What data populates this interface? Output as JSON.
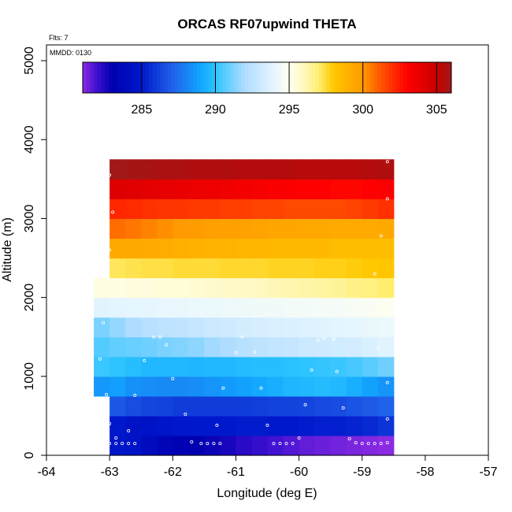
{
  "chart_data": {
    "type": "heatmap",
    "title": "ORCAS RF07upwind THETA",
    "annotations": {
      "flights": "Flts: 7",
      "date": "MMDD: 0130"
    },
    "xlabel": "Longitude (deg E)",
    "ylabel": "Altitude (m)",
    "xlim": [
      -64,
      -57
    ],
    "ylim": [
      0,
      5200
    ],
    "xticks": [
      -64,
      -63,
      -62,
      -61,
      -60,
      -59,
      -58,
      -57
    ],
    "yticks": [
      0,
      1000,
      2000,
      3000,
      4000,
      5000
    ],
    "colorbar": {
      "range": [
        281,
        306
      ],
      "ticks": [
        285,
        290,
        295,
        300,
        305
      ],
      "stops": [
        {
          "v": 281,
          "c": "#8a2be2"
        },
        {
          "v": 282,
          "c": "#3a0fd0"
        },
        {
          "v": 283,
          "c": "#0000b0"
        },
        {
          "v": 285,
          "c": "#0018cc"
        },
        {
          "v": 287,
          "c": "#1f5fe8"
        },
        {
          "v": 289,
          "c": "#11a6ff"
        },
        {
          "v": 290,
          "c": "#2dc4ff"
        },
        {
          "v": 292,
          "c": "#b0dcff"
        },
        {
          "v": 294,
          "c": "#e6f6ff"
        },
        {
          "v": 295,
          "c": "#fffff0"
        },
        {
          "v": 296,
          "c": "#fff8c0"
        },
        {
          "v": 297,
          "c": "#ffee70"
        },
        {
          "v": 298,
          "c": "#ffc800"
        },
        {
          "v": 300,
          "c": "#ff9a00"
        },
        {
          "v": 301,
          "c": "#ff6000"
        },
        {
          "v": 303,
          "c": "#ff0000"
        },
        {
          "v": 305,
          "c": "#c80000"
        },
        {
          "v": 306,
          "c": "#a01818"
        }
      ]
    },
    "cell_lon_width": 0.25,
    "rows": [
      {
        "alt": [
          0,
          250
        ],
        "lon": [
          -63,
          -58.5
        ],
        "theta": [
          284.8,
          284.6,
          284.0,
          283.5,
          283.2,
          283.0,
          282.8,
          282.6,
          282.3,
          282.1,
          281.9,
          281.7,
          281.5,
          281.4,
          281.3,
          281.2,
          281.1,
          281.0
        ]
      },
      {
        "alt": [
          250,
          500
        ],
        "lon": [
          -63,
          -58.5
        ],
        "theta": [
          285.0,
          284.6,
          284.5,
          284.7,
          284.9,
          285.0,
          285.0,
          285.0,
          285.1,
          285.1,
          285.0,
          285.0,
          285.1,
          285.2,
          285.2,
          285.3,
          285.5,
          285.8
        ]
      },
      {
        "alt": [
          500,
          750
        ],
        "lon": [
          -63,
          -58.5
        ],
        "theta": [
          286.8,
          286.5,
          286.3,
          286.2,
          286.0,
          286.0,
          286.0,
          286.0,
          286.0,
          286.1,
          286.2,
          286.2,
          286.3,
          286.4,
          286.5,
          286.7,
          286.9,
          287.1
        ]
      },
      {
        "alt": [
          750,
          1000
        ],
        "lon": [
          -63.25,
          -58.5
        ],
        "theta": [
          288.6,
          288.8,
          288.4,
          288.3,
          288.2,
          288.2,
          288.3,
          288.5,
          288.7,
          288.9,
          289.1,
          289.3,
          289.5,
          289.6,
          289.7,
          289.6,
          289.3,
          288.9,
          288.5
        ]
      },
      {
        "alt": [
          1000,
          1250
        ],
        "lon": [
          -63.25,
          -58.5
        ],
        "theta": [
          290.2,
          290.0,
          289.8,
          289.6,
          289.6,
          289.6,
          289.5,
          289.6,
          289.6,
          289.7,
          289.8,
          289.8,
          289.9,
          290.0,
          290.1,
          290.2,
          290.4,
          290.7,
          291.0
        ]
      },
      {
        "alt": [
          1250,
          1500
        ],
        "lon": [
          -63.25,
          -58.5
        ],
        "theta": [
          290.6,
          290.8,
          290.9,
          291.0,
          291.2,
          291.3,
          291.5,
          291.8,
          292.0,
          292.3,
          292.5,
          292.7,
          292.8,
          293.0,
          293.1,
          293.2,
          293.3,
          293.5,
          293.8
        ]
      },
      {
        "alt": [
          1500,
          1750
        ],
        "lon": [
          -63.25,
          -58.5
        ],
        "theta": [
          291.2,
          291.6,
          292.0,
          292.3,
          292.5,
          292.6,
          292.8,
          293.0,
          293.1,
          293.3,
          293.4,
          293.5,
          293.6,
          293.7,
          293.8,
          293.9,
          294.0,
          294.1,
          294.2
        ]
      },
      {
        "alt": [
          1750,
          2000
        ],
        "lon": [
          -63.25,
          -58.5
        ],
        "theta": [
          293.8,
          293.9,
          294.0,
          294.0,
          294.1,
          294.1,
          294.2,
          294.2,
          294.3,
          294.3,
          294.4,
          294.4,
          294.5,
          294.5,
          294.6,
          294.6,
          294.7,
          294.8,
          294.9
        ]
      },
      {
        "alt": [
          2000,
          2250
        ],
        "lon": [
          -63.25,
          -58.5
        ],
        "theta": [
          295.3,
          295.3,
          295.4,
          295.4,
          295.5,
          295.5,
          295.6,
          295.7,
          295.8,
          295.9,
          296.0,
          296.1,
          296.2,
          296.3,
          296.4,
          296.5,
          296.7,
          296.8,
          297.0
        ]
      },
      {
        "alt": [
          2250,
          2500
        ],
        "lon": [
          -63,
          -58.5
        ],
        "theta": [
          297.2,
          297.3,
          297.4,
          297.4,
          297.5,
          297.5,
          297.5,
          297.6,
          297.6,
          297.6,
          297.7,
          297.7,
          297.7,
          297.8,
          297.8,
          297.9,
          298.0,
          298.1
        ]
      },
      {
        "alt": [
          2500,
          2750
        ],
        "lon": [
          -63,
          -58.5
        ],
        "theta": [
          299.4,
          299.4,
          299.3,
          299.2,
          299.1,
          299.0,
          298.9,
          298.9,
          298.8,
          298.8,
          298.7,
          298.7,
          298.6,
          298.6,
          298.5,
          298.5,
          298.5,
          298.5
        ]
      },
      {
        "alt": [
          2750,
          3000
        ],
        "lon": [
          -63,
          -58.5
        ],
        "theta": [
          300.8,
          300.6,
          300.4,
          300.2,
          300.0,
          299.9,
          299.8,
          299.7,
          299.7,
          299.6,
          299.5,
          299.5,
          299.4,
          299.4,
          299.3,
          299.3,
          299.3,
          299.4
        ]
      },
      {
        "alt": [
          3000,
          3250
        ],
        "lon": [
          -63,
          -58.5
        ],
        "theta": [
          302.2,
          302.1,
          302.0,
          301.9,
          301.9,
          301.8,
          301.8,
          301.7,
          301.7,
          301.6,
          301.6,
          301.5,
          301.5,
          301.5,
          301.5,
          301.6,
          301.8,
          302.0
        ]
      },
      {
        "alt": [
          3250,
          3500
        ],
        "lon": [
          -63,
          -58.5
        ],
        "theta": [
          304.2,
          304.1,
          304.0,
          303.9,
          303.8,
          303.7,
          303.6,
          303.5,
          303.4,
          303.3,
          303.2,
          303.1,
          303.0,
          303.0,
          302.9,
          302.9,
          303.0,
          303.2
        ]
      },
      {
        "alt": [
          3500,
          3750
        ],
        "lon": [
          -63,
          -58.5
        ],
        "theta": [
          306.0,
          305.9,
          305.8,
          305.7,
          305.7,
          305.6,
          305.6,
          305.6,
          305.5,
          305.5,
          305.5,
          305.5,
          305.4,
          305.4,
          305.4,
          305.4,
          305.5,
          305.6
        ]
      }
    ],
    "obs_points": [
      [
        -63,
        3550
      ],
      [
        -58.6,
        3720
      ],
      [
        -58.6,
        3250
      ],
      [
        -62.95,
        3080
      ],
      [
        -58.7,
        2780
      ],
      [
        -63,
        2600
      ],
      [
        -58.8,
        2300
      ],
      [
        -63.1,
        2120
      ],
      [
        -63.1,
        1680
      ],
      [
        -62.3,
        1500
      ],
      [
        -62.2,
        1500
      ],
      [
        -62.1,
        1400
      ],
      [
        -61.0,
        1300
      ],
      [
        -60.9,
        1500
      ],
      [
        -60.7,
        1310
      ],
      [
        -59.7,
        1460
      ],
      [
        -59.6,
        1480
      ],
      [
        -59.45,
        1470
      ],
      [
        -58.75,
        1360
      ],
      [
        -63.15,
        1220
      ],
      [
        -62.45,
        1200
      ],
      [
        -62.0,
        970
      ],
      [
        -59.8,
        1080
      ],
      [
        -59.4,
        1060
      ],
      [
        -58.6,
        920
      ],
      [
        -61.2,
        850
      ],
      [
        -60.6,
        850
      ],
      [
        -63.05,
        770
      ],
      [
        -62.6,
        760
      ],
      [
        -59.3,
        600
      ],
      [
        -59.9,
        640
      ],
      [
        -61.8,
        520
      ],
      [
        -58.6,
        460
      ],
      [
        -61.3,
        380
      ],
      [
        -60.5,
        380
      ],
      [
        -62.7,
        310
      ],
      [
        -63.0,
        400
      ],
      [
        -62.9,
        220
      ],
      [
        -59.2,
        210
      ],
      [
        -60.0,
        220
      ],
      [
        -63.0,
        150
      ],
      [
        -62.9,
        150
      ],
      [
        -62.8,
        150
      ],
      [
        -62.7,
        150
      ],
      [
        -62.6,
        150
      ],
      [
        -61.7,
        170
      ],
      [
        -61.55,
        150
      ],
      [
        -61.45,
        150
      ],
      [
        -61.35,
        150
      ],
      [
        -61.25,
        150
      ],
      [
        -60.4,
        150
      ],
      [
        -60.3,
        150
      ],
      [
        -60.2,
        150
      ],
      [
        -60.1,
        150
      ],
      [
        -59.1,
        160
      ],
      [
        -59.0,
        150
      ],
      [
        -58.9,
        150
      ],
      [
        -58.8,
        150
      ],
      [
        -58.7,
        150
      ],
      [
        -58.6,
        160
      ]
    ]
  }
}
